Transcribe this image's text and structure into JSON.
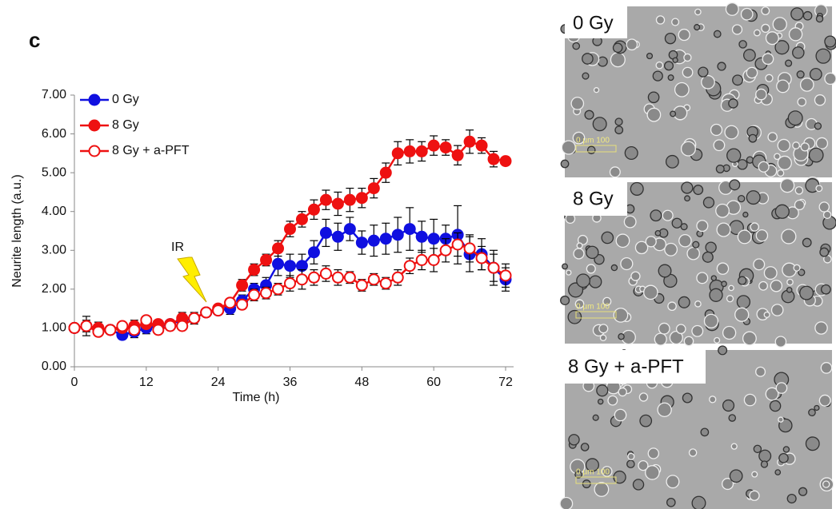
{
  "chart_data": {
    "type": "line",
    "panel_label": "c",
    "x_label": "Time (h)",
    "y_label": "Neurite length (a.u.)",
    "annotation": "IR",
    "xlim": [
      0,
      72
    ],
    "xticks": [
      0,
      12,
      24,
      36,
      48,
      60,
      72
    ],
    "ylim": [
      0,
      7
    ],
    "yticks": [
      {
        "value": 0,
        "label": "0.00"
      },
      {
        "value": 1,
        "label": "1.00"
      },
      {
        "value": 2,
        "label": "2.00"
      },
      {
        "value": 3,
        "label": "3.00"
      },
      {
        "value": 4,
        "label": "4.00"
      },
      {
        "value": 5,
        "label": "5.00"
      },
      {
        "value": 6,
        "label": "6.00"
      },
      {
        "value": 7,
        "label": "7.00"
      }
    ],
    "legend": "top-left",
    "x": [
      0,
      2,
      4,
      6,
      8,
      10,
      12,
      14,
      16,
      18,
      20,
      22,
      24,
      26,
      28,
      30,
      32,
      34,
      36,
      38,
      40,
      42,
      44,
      46,
      48,
      50,
      52,
      54,
      56,
      58,
      60,
      62,
      64,
      66,
      68,
      70,
      72
    ],
    "series": [
      {
        "name": "0 Gy",
        "color": "#1010e0",
        "filled": true,
        "values": [
          1.0,
          1.05,
          0.95,
          0.95,
          0.82,
          0.9,
          1.0,
          1.05,
          1.1,
          1.2,
          1.25,
          1.4,
          1.45,
          1.5,
          1.7,
          2.0,
          2.1,
          2.65,
          2.6,
          2.6,
          2.95,
          3.45,
          3.35,
          3.55,
          3.2,
          3.25,
          3.3,
          3.4,
          3.55,
          3.35,
          3.3,
          3.3,
          3.4,
          2.9,
          2.9,
          2.55,
          2.25
        ],
        "errors": [
          0.1,
          0.25,
          0.15,
          0.1,
          0.1,
          0.15,
          0.15,
          0.1,
          0.1,
          0.1,
          0.1,
          0.1,
          0.1,
          0.15,
          0.15,
          0.15,
          0.2,
          0.3,
          0.3,
          0.3,
          0.3,
          0.35,
          0.35,
          0.3,
          0.3,
          0.4,
          0.4,
          0.45,
          0.55,
          0.4,
          0.5,
          0.35,
          0.75,
          0.45,
          0.4,
          0.45,
          0.3
        ]
      },
      {
        "name": "8 Gy",
        "color": "#ee1111",
        "filled": true,
        "values": [
          1.0,
          1.05,
          1.0,
          0.95,
          1.0,
          1.05,
          1.1,
          1.1,
          1.1,
          1.25,
          1.25,
          1.4,
          1.5,
          1.65,
          2.1,
          2.5,
          2.75,
          3.05,
          3.55,
          3.8,
          4.05,
          4.3,
          4.2,
          4.3,
          4.35,
          4.6,
          5.0,
          5.5,
          5.55,
          5.55,
          5.7,
          5.65,
          5.45,
          5.8,
          5.7,
          5.35,
          5.3
        ],
        "errors": [
          0.1,
          0.15,
          0.15,
          0.1,
          0.1,
          0.15,
          0.1,
          0.1,
          0.1,
          0.15,
          0.15,
          0.1,
          0.1,
          0.1,
          0.15,
          0.15,
          0.15,
          0.2,
          0.2,
          0.2,
          0.25,
          0.25,
          0.3,
          0.3,
          0.25,
          0.25,
          0.25,
          0.3,
          0.3,
          0.25,
          0.25,
          0.2,
          0.25,
          0.3,
          0.2,
          0.2,
          0.1
        ]
      },
      {
        "name": "8 Gy + a-PFT",
        "color": "#ee1111",
        "filled": false,
        "values": [
          1.0,
          1.05,
          0.9,
          0.95,
          1.05,
          0.95,
          1.2,
          0.95,
          1.05,
          1.05,
          1.25,
          1.4,
          1.45,
          1.65,
          1.6,
          1.85,
          1.9,
          2.0,
          2.15,
          2.25,
          2.3,
          2.4,
          2.3,
          2.3,
          2.1,
          2.25,
          2.15,
          2.3,
          2.6,
          2.75,
          2.75,
          3.0,
          3.15,
          3.05,
          2.8,
          2.55,
          2.35
        ],
        "errors": [
          0.1,
          0.1,
          0.1,
          0.1,
          0.1,
          0.1,
          0.1,
          0.1,
          0.1,
          0.1,
          0.1,
          0.1,
          0.1,
          0.1,
          0.1,
          0.15,
          0.15,
          0.15,
          0.2,
          0.25,
          0.2,
          0.2,
          0.2,
          0.15,
          0.15,
          0.15,
          0.15,
          0.2,
          0.2,
          0.25,
          0.3,
          0.3,
          0.3,
          0.35,
          0.3,
          0.35,
          0.3
        ]
      }
    ]
  },
  "images": [
    {
      "label": "0 Gy",
      "scale": "0  µm  100"
    },
    {
      "label": "8 Gy",
      "scale": "0  µm  100"
    },
    {
      "label": "8 Gy + a-PFT",
      "scale": "0  µm  100"
    }
  ]
}
